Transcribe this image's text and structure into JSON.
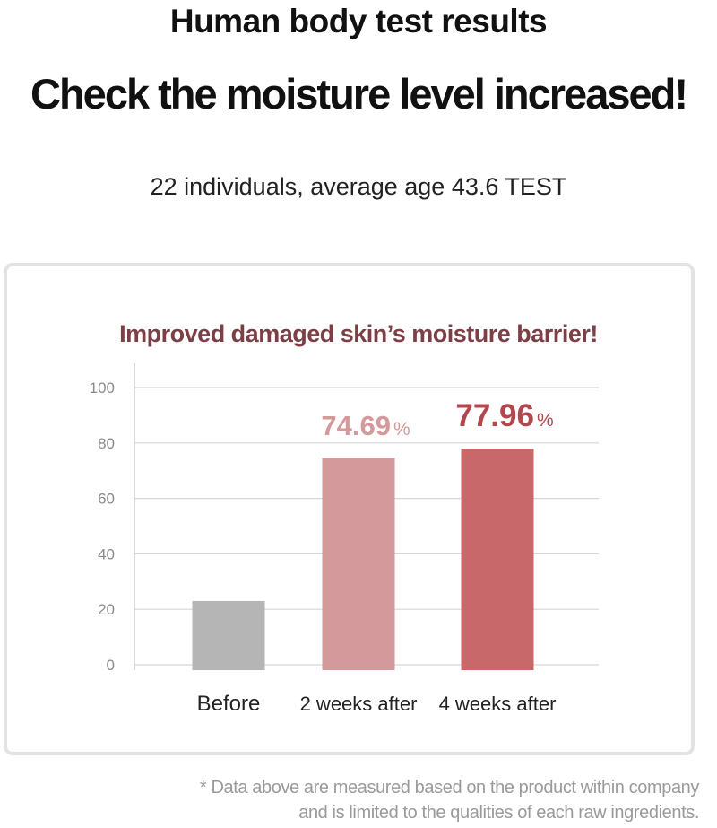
{
  "header": {
    "title": "Human body test results",
    "headline": "Check the moisture level increased!",
    "subtitle": "22 individuals, average age 43.6  TEST"
  },
  "colors": {
    "title_accent": "#7b3f45",
    "bar_before": "#b5b5b5",
    "bar_2weeks": "#d4999b",
    "bar_4weeks": "#c8686b",
    "label_2weeks": "#d4999b",
    "label_4weeks": "#b2474d"
  },
  "chart_data": {
    "type": "bar",
    "title": "Improved damaged skin’s moisture barrier!",
    "categories": [
      "Before",
      "2 weeks after",
      "4 weeks after"
    ],
    "values": [
      23,
      74.69,
      77.96
    ],
    "value_labels": [
      "",
      "74.69",
      "77.96"
    ],
    "value_unit": "%",
    "y_ticks": [
      "0",
      "20",
      "40",
      "60",
      "80",
      "100"
    ],
    "ylim": [
      0,
      100
    ],
    "grid": true,
    "xlabel": "",
    "ylabel": ""
  },
  "footnote": {
    "line1": "* Data above are measured based on the product within company",
    "line2": "and is limited to the qualities of each raw ingredients."
  }
}
